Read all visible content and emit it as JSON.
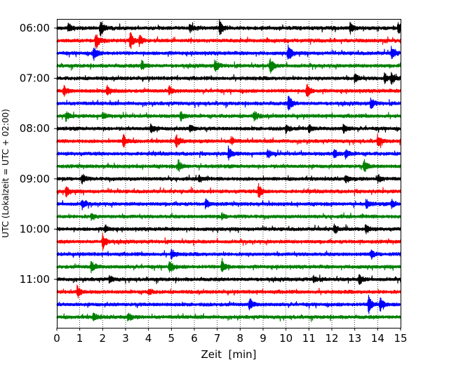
{
  "chart_data": {
    "type": "line",
    "xlabel": "Zeit  [min]",
    "ylabel": "UTC (Lokalzeit = UTC + 02:00)",
    "xlim": [
      0,
      15
    ],
    "x_ticks": [
      0,
      1,
      2,
      3,
      4,
      5,
      6,
      7,
      8,
      9,
      10,
      11,
      12,
      13,
      14,
      15
    ],
    "x_tick_labels": [
      "0",
      "1",
      "2",
      "3",
      "4",
      "5",
      "6",
      "7",
      "8",
      "9",
      "10",
      "11",
      "12",
      "13",
      "14",
      "15"
    ],
    "y_tick_labels": [
      "06:00",
      "07:00",
      "08:00",
      "09:00",
      "10:00",
      "11:00"
    ],
    "y_tick_trace_index": [
      0,
      4,
      8,
      12,
      16,
      20
    ],
    "grid": "vertical dotted",
    "trace_start_utc": "06:00",
    "trace_length_min": 15,
    "trace_colors": [
      "#000000",
      "#ff0000",
      "#0000ff",
      "#008000"
    ],
    "series": [
      {
        "start": "06:00",
        "color": "#000000",
        "events": [
          [
            0.5,
            0.5
          ],
          [
            1.9,
            1.0
          ],
          [
            5.8,
            0.45
          ],
          [
            7.1,
            0.9
          ],
          [
            12.8,
            0.6
          ],
          [
            14.9,
            0.7
          ]
        ]
      },
      {
        "start": "06:15",
        "color": "#ff0000",
        "events": [
          [
            1.7,
            1.0
          ],
          [
            3.2,
            1.0
          ],
          [
            3.6,
            0.6
          ]
        ]
      },
      {
        "start": "06:30",
        "color": "#0000ff",
        "events": [
          [
            1.6,
            0.8
          ],
          [
            10.1,
            1.0
          ],
          [
            14.6,
            0.8
          ]
        ]
      },
      {
        "start": "06:45",
        "color": "#008000",
        "events": [
          [
            3.7,
            0.6
          ],
          [
            6.9,
            0.7
          ],
          [
            9.3,
            0.9
          ]
        ]
      },
      {
        "start": "07:00",
        "color": "#000000",
        "events": [
          [
            13.0,
            0.5
          ],
          [
            14.3,
            0.6
          ],
          [
            14.6,
            0.7
          ]
        ]
      },
      {
        "start": "07:15",
        "color": "#ff0000",
        "events": [
          [
            0.3,
            0.6
          ],
          [
            2.2,
            0.7
          ],
          [
            4.9,
            0.5
          ],
          [
            10.9,
            0.8
          ]
        ]
      },
      {
        "start": "07:30",
        "color": "#0000ff",
        "events": [
          [
            10.1,
            1.0
          ],
          [
            13.7,
            0.6
          ]
        ]
      },
      {
        "start": "07:45",
        "color": "#008000",
        "events": [
          [
            0.4,
            0.5
          ],
          [
            2.0,
            0.4
          ],
          [
            5.4,
            0.6
          ],
          [
            8.6,
            0.6
          ]
        ]
      },
      {
        "start": "08:00",
        "color": "#000000",
        "events": [
          [
            4.1,
            0.6
          ],
          [
            5.8,
            0.5
          ],
          [
            10.0,
            0.5
          ],
          [
            11.0,
            0.45
          ],
          [
            12.5,
            0.5
          ]
        ]
      },
      {
        "start": "08:15",
        "color": "#ff0000",
        "events": [
          [
            2.9,
            0.8
          ],
          [
            5.2,
            0.7
          ],
          [
            7.6,
            0.5
          ],
          [
            14.0,
            0.7
          ]
        ]
      },
      {
        "start": "08:30",
        "color": "#0000ff",
        "events": [
          [
            7.5,
            0.7
          ],
          [
            9.2,
            0.5
          ],
          [
            12.1,
            0.6
          ],
          [
            12.6,
            0.5
          ]
        ]
      },
      {
        "start": "08:45",
        "color": "#008000",
        "events": [
          [
            5.3,
            0.7
          ],
          [
            13.4,
            0.7
          ]
        ]
      },
      {
        "start": "09:00",
        "color": "#000000",
        "events": [
          [
            1.1,
            0.5
          ],
          [
            6.2,
            0.45
          ],
          [
            12.6,
            0.45
          ],
          [
            14.0,
            0.45
          ]
        ]
      },
      {
        "start": "09:15",
        "color": "#ff0000",
        "events": [
          [
            0.4,
            0.6
          ],
          [
            8.8,
            0.9
          ]
        ]
      },
      {
        "start": "09:30",
        "color": "#0000ff",
        "events": [
          [
            1.1,
            0.6
          ],
          [
            6.5,
            0.5
          ],
          [
            13.5,
            0.5
          ],
          [
            14.6,
            0.5
          ]
        ]
      },
      {
        "start": "09:45",
        "color": "#008000",
        "events": [
          [
            1.5,
            0.35
          ],
          [
            7.2,
            0.3
          ]
        ]
      },
      {
        "start": "10:00",
        "color": "#000000",
        "events": [
          [
            2.1,
            0.4
          ],
          [
            12.1,
            0.5
          ],
          [
            13.5,
            0.5
          ]
        ]
      },
      {
        "start": "10:15",
        "color": "#ff0000",
        "events": [
          [
            2.0,
            1.0
          ]
        ]
      },
      {
        "start": "10:30",
        "color": "#0000ff",
        "events": [
          [
            5.0,
            0.5
          ],
          [
            13.7,
            0.5
          ]
        ]
      },
      {
        "start": "10:45",
        "color": "#008000",
        "events": [
          [
            1.5,
            0.7
          ],
          [
            4.9,
            0.7
          ],
          [
            7.2,
            0.9
          ]
        ]
      },
      {
        "start": "11:00",
        "color": "#000000",
        "events": [
          [
            2.3,
            0.4
          ],
          [
            11.2,
            0.4
          ],
          [
            13.2,
            0.6
          ]
        ]
      },
      {
        "start": "11:15",
        "color": "#ff0000",
        "events": [
          [
            0.9,
            0.6
          ],
          [
            4.0,
            0.35
          ]
        ]
      },
      {
        "start": "11:30",
        "color": "#0000ff",
        "events": [
          [
            8.4,
            0.7
          ],
          [
            13.6,
            1.0
          ],
          [
            14.1,
            0.9
          ]
        ]
      },
      {
        "start": "11:45",
        "color": "#008000",
        "events": [
          [
            1.6,
            0.5
          ],
          [
            3.1,
            0.45
          ]
        ]
      }
    ]
  }
}
